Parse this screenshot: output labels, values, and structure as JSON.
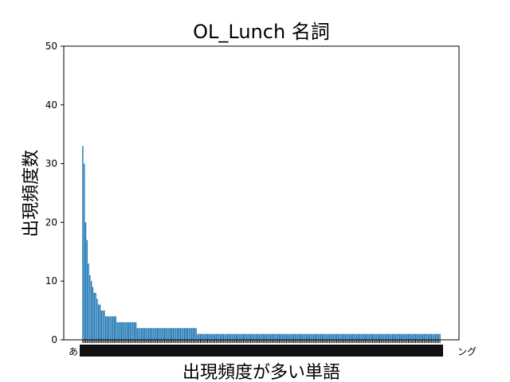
{
  "chart_data": {
    "type": "bar",
    "title": "OL_Lunch 名詞",
    "xlabel": "出現頻度が多い単語",
    "ylabel": "出現頻度数",
    "ylim": [
      0,
      50
    ],
    "yticks": [
      0,
      10,
      20,
      30,
      40,
      50
    ],
    "grid": false,
    "bar_color": "#1f77b4",
    "visible_category_labels": {
      "first_fragment": "あ",
      "last_fragment": "ング"
    },
    "values": [
      33,
      30,
      20,
      17,
      13,
      11,
      10,
      9,
      8,
      8,
      7,
      6,
      6,
      5,
      5,
      5,
      4,
      4,
      4,
      4,
      4,
      4,
      4,
      4,
      3,
      3,
      3,
      3,
      3,
      3,
      3,
      3,
      3,
      3,
      3,
      3,
      3,
      3,
      2,
      2,
      2,
      2,
      2,
      2,
      2,
      2,
      2,
      2,
      2,
      2,
      2,
      2,
      2,
      2,
      2,
      2,
      2,
      2,
      2,
      2,
      2,
      2,
      2,
      2,
      2,
      2,
      2,
      2,
      2,
      2,
      2,
      2,
      2,
      2,
      2,
      2,
      2,
      2,
      2,
      2,
      1,
      1,
      1,
      1,
      1,
      1,
      1,
      1,
      1,
      1,
      1,
      1,
      1,
      1,
      1,
      1,
      1,
      1,
      1,
      1,
      1,
      1,
      1,
      1,
      1,
      1,
      1,
      1,
      1,
      1,
      1,
      1,
      1,
      1,
      1,
      1,
      1,
      1,
      1,
      1,
      1,
      1,
      1,
      1,
      1,
      1,
      1,
      1,
      1,
      1,
      1,
      1,
      1,
      1,
      1,
      1,
      1,
      1,
      1,
      1,
      1,
      1,
      1,
      1,
      1,
      1,
      1,
      1,
      1,
      1,
      1,
      1,
      1,
      1,
      1,
      1,
      1,
      1,
      1,
      1,
      1,
      1,
      1,
      1,
      1,
      1,
      1,
      1,
      1,
      1,
      1,
      1,
      1,
      1,
      1,
      1,
      1,
      1,
      1,
      1,
      1,
      1,
      1,
      1,
      1,
      1,
      1,
      1,
      1,
      1,
      1,
      1,
      1,
      1,
      1,
      1,
      1,
      1,
      1,
      1,
      1,
      1,
      1,
      1,
      1,
      1,
      1,
      1,
      1,
      1,
      1,
      1,
      1,
      1,
      1,
      1,
      1,
      1,
      1,
      1,
      1,
      1,
      1,
      1,
      1,
      1,
      1,
      1,
      1,
      1,
      1,
      1,
      1,
      1,
      1,
      1,
      1,
      1,
      1,
      1,
      1,
      1,
      1,
      1,
      1,
      1,
      1,
      1,
      1,
      1
    ]
  }
}
